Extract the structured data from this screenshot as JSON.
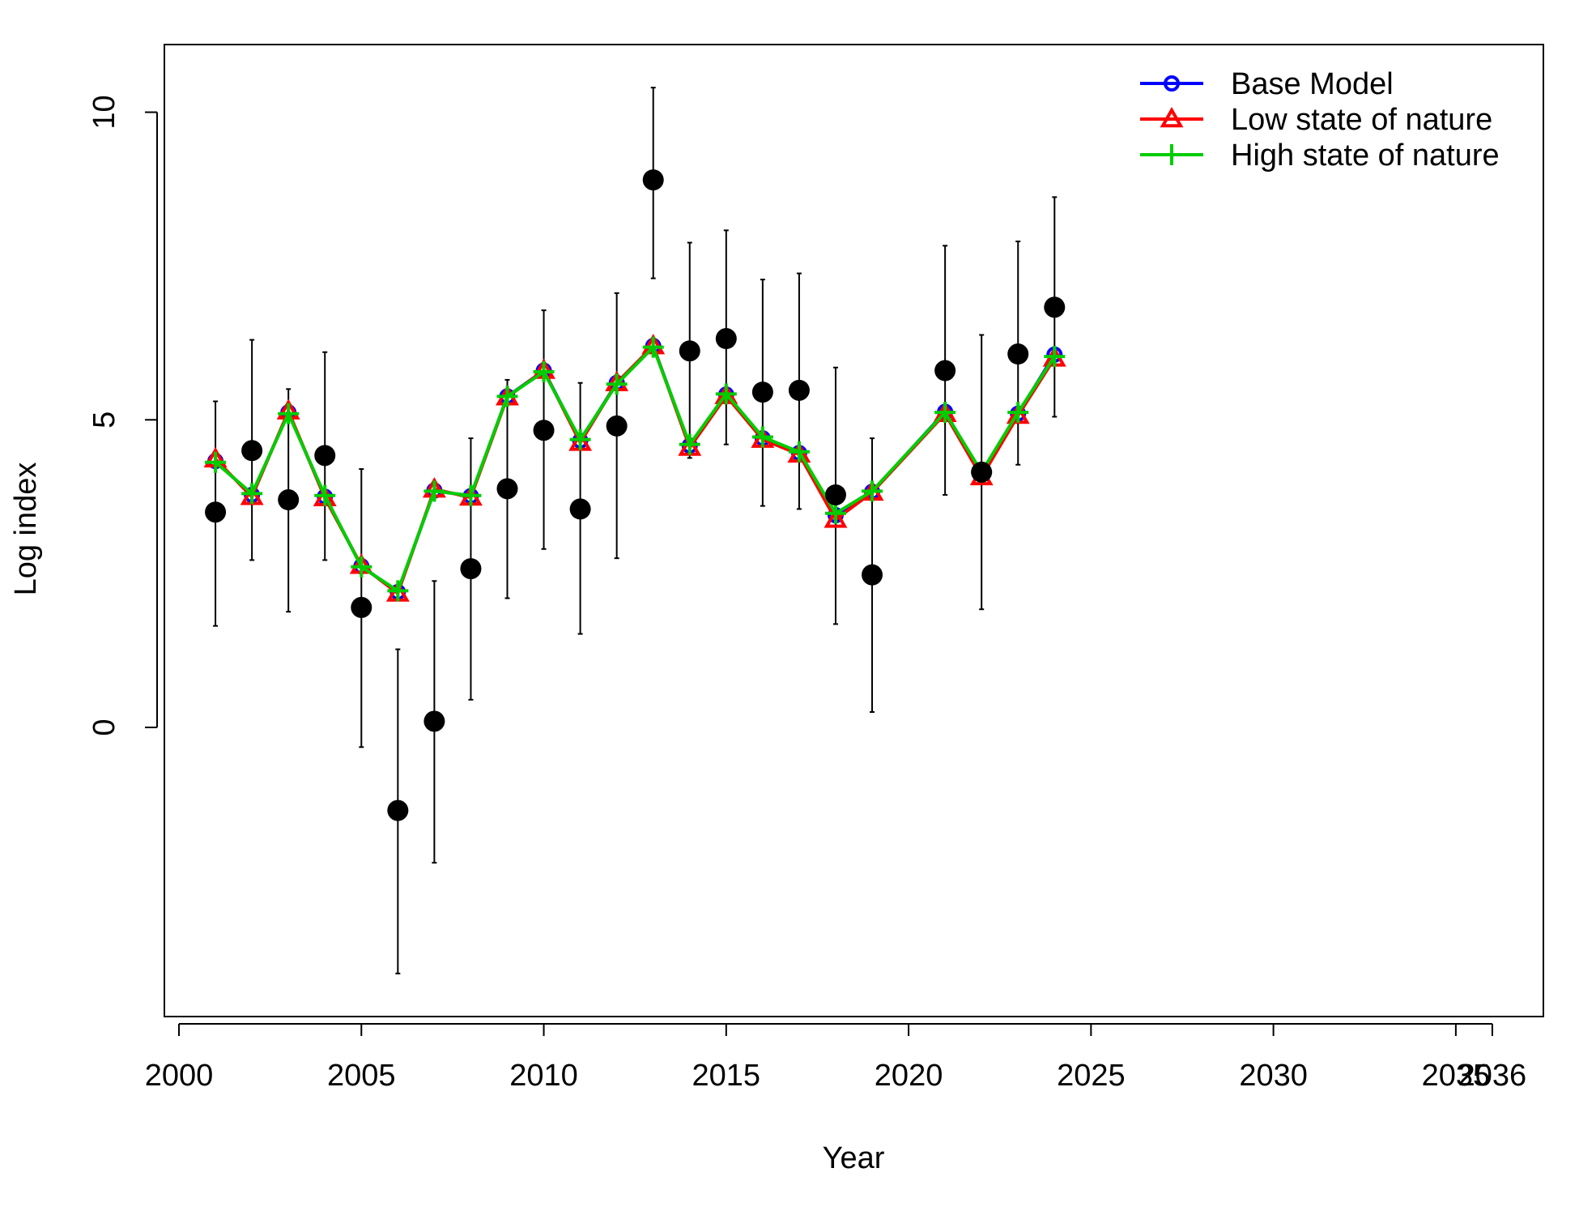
{
  "chart_data": {
    "type": "line",
    "title": "",
    "xlabel": "Year",
    "ylabel": "Log index",
    "xlim": [
      1999.6,
      2037.4
    ],
    "ylim": [
      -4.7,
      11.1
    ],
    "x_ticks": [
      {
        "value": 2000,
        "label": "2000"
      },
      {
        "value": 2005,
        "label": "2005"
      },
      {
        "value": 2010,
        "label": "2010"
      },
      {
        "value": 2015,
        "label": "2015"
      },
      {
        "value": 2020,
        "label": "2020"
      },
      {
        "value": 2025,
        "label": "2025"
      },
      {
        "value": 2030,
        "label": "2030"
      },
      {
        "value": 2035,
        "label": "2035"
      },
      {
        "value": 2036,
        "label": "2036"
      }
    ],
    "y_ticks": [
      {
        "value": 0,
        "label": "0"
      },
      {
        "value": 5,
        "label": "5"
      },
      {
        "value": 10,
        "label": "10"
      }
    ],
    "grid": false,
    "legend": "top-right",
    "observed": {
      "x": [
        2001,
        2002,
        2003,
        2004,
        2005,
        2006,
        2007,
        2008,
        2009,
        2010,
        2011,
        2012,
        2013,
        2014,
        2015,
        2016,
        2017,
        2018,
        2019,
        2021,
        2022,
        2023,
        2024
      ],
      "y": [
        3.5,
        4.5,
        3.7,
        4.42,
        1.95,
        -1.35,
        0.1,
        2.58,
        3.88,
        4.83,
        3.55,
        4.9,
        8.9,
        6.12,
        6.32,
        5.45,
        5.48,
        3.78,
        2.48,
        5.8,
        4.15,
        6.07,
        6.83
      ],
      "lower": [
        1.65,
        2.72,
        1.88,
        2.72,
        -0.32,
        -4.0,
        -2.2,
        0.45,
        2.1,
        2.9,
        1.52,
        2.75,
        7.3,
        4.38,
        4.6,
        3.6,
        3.55,
        1.68,
        0.25,
        3.78,
        1.92,
        4.27,
        5.05
      ],
      "upper": [
        5.3,
        6.3,
        5.5,
        6.1,
        4.2,
        1.27,
        2.38,
        4.7,
        5.65,
        6.78,
        5.6,
        7.06,
        10.4,
        7.88,
        8.08,
        7.28,
        7.38,
        5.85,
        4.7,
        7.83,
        6.38,
        7.9,
        8.62
      ]
    },
    "x": [
      2001,
      2002,
      2003,
      2004,
      2005,
      2006,
      2007,
      2008,
      2009,
      2010,
      2011,
      2012,
      2013,
      2014,
      2015,
      2016,
      2017,
      2018,
      2019,
      2021,
      2022,
      2023,
      2024
    ],
    "series": [
      {
        "name": "Base Model",
        "color": "#0000ff",
        "marker": "circle",
        "values": [
          4.33,
          3.78,
          5.12,
          3.75,
          2.62,
          2.2,
          3.85,
          3.76,
          5.38,
          5.8,
          4.66,
          5.6,
          6.2,
          4.58,
          5.41,
          4.7,
          4.46,
          3.45,
          3.83,
          5.13,
          4.12,
          5.1,
          6.06
        ]
      },
      {
        "name": "Low state of nature",
        "color": "#ff0000",
        "marker": "triangle",
        "values": [
          4.36,
          3.75,
          5.14,
          3.73,
          2.63,
          2.18,
          3.87,
          3.74,
          5.37,
          5.8,
          4.63,
          5.6,
          6.2,
          4.55,
          5.39,
          4.68,
          4.44,
          3.38,
          3.82,
          5.1,
          4.07,
          5.07,
          6.0
        ]
      },
      {
        "name": "High state of nature",
        "color": "#00cd00",
        "marker": "plus",
        "values": [
          4.31,
          3.8,
          5.1,
          3.77,
          2.61,
          2.22,
          3.84,
          3.77,
          5.38,
          5.78,
          4.68,
          5.58,
          6.18,
          4.6,
          5.42,
          4.72,
          4.48,
          3.48,
          3.84,
          5.12,
          4.15,
          5.12,
          6.03
        ]
      }
    ]
  }
}
